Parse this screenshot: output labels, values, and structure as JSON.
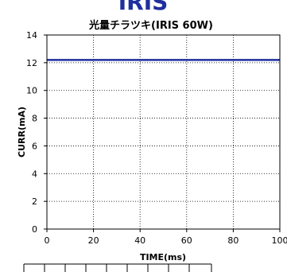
{
  "brand_text": "IRIS",
  "chart_data": {
    "type": "line",
    "title": "光量チラツキ(IRIS 60W)",
    "xlabel": "TIME(ms)",
    "ylabel": "CURR(mA)",
    "xlim": [
      0,
      100
    ],
    "ylim": [
      0,
      14
    ],
    "x_ticks": [
      "0",
      "20",
      "40",
      "60",
      "80",
      "100"
    ],
    "y_ticks": [
      "0",
      "2",
      "4",
      "6",
      "8",
      "10",
      "12",
      "14"
    ],
    "grid": true,
    "grid_style": "dotted",
    "series": [
      {
        "color": "#1f2f9e",
        "x": [
          0,
          10,
          20,
          30,
          40,
          50,
          60,
          70,
          80,
          90,
          100
        ],
        "values": [
          12.2,
          12.2,
          12.2,
          12.2,
          12.2,
          12.2,
          12.2,
          12.2,
          12.2,
          12.2,
          12.2
        ]
      }
    ]
  }
}
